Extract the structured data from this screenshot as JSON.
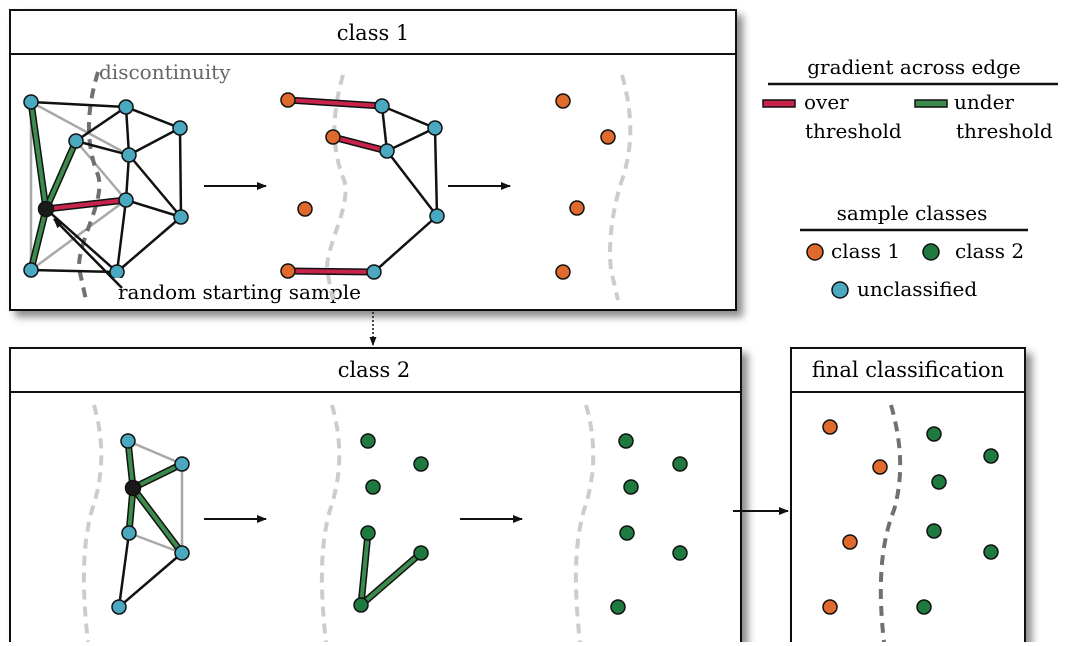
{
  "panels": {
    "class1_title": "class 1",
    "class2_title": "class 2",
    "final_title": "final classification"
  },
  "labels": {
    "discontinuity": "discontinuity",
    "random_start": "random starting sample"
  },
  "legend_gradient": {
    "title": "gradient across edge",
    "over_line1": "over",
    "over_line2": "threshold",
    "under_line1": "under",
    "under_line2": "threshold"
  },
  "legend_samples": {
    "title": "sample classes",
    "class1": "class 1",
    "class2": "class 2",
    "unclassified": "unclassified"
  },
  "colors": {
    "class1": "#e06a2c",
    "class2": "#1e7a3e",
    "unclassified": "#4aa8c0",
    "over_edge": "#c8234a",
    "under_edge": "#3c8a4c",
    "edge": "#111111",
    "faded_edge": "#a8a8a8",
    "discontinuity_dark": "#707070",
    "discontinuity_light": "#cccccc"
  }
}
